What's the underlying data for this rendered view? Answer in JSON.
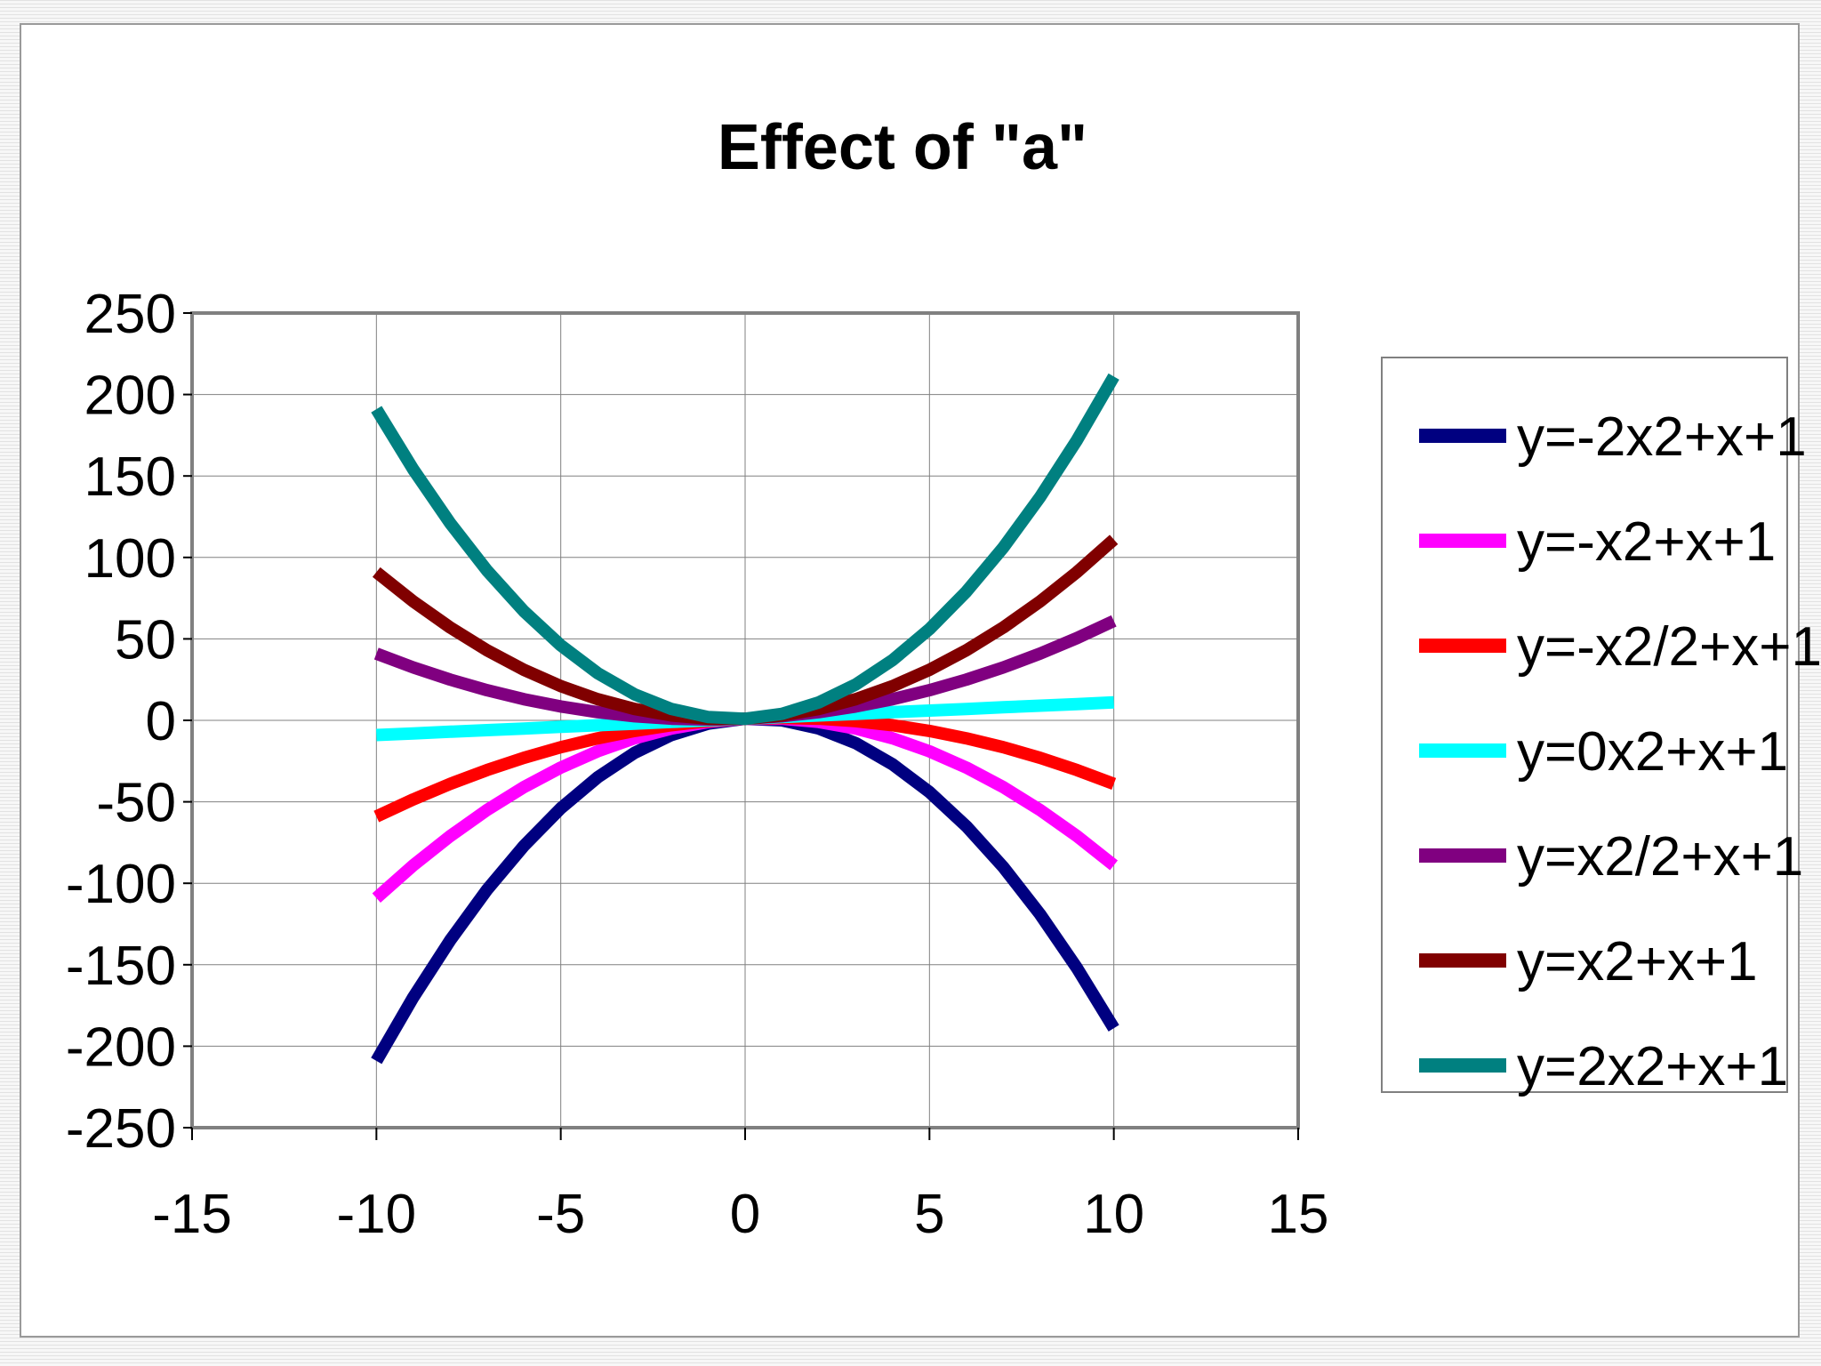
{
  "chart_data": {
    "type": "line",
    "title": "Effect of \"a\"",
    "xlabel": "",
    "ylabel": "",
    "xlim": [
      -15,
      15
    ],
    "ylim": [
      -250,
      250
    ],
    "x_ticks": [
      "-15",
      "-10",
      "-5",
      "0",
      "5",
      "10",
      "15"
    ],
    "y_ticks": [
      "250",
      "200",
      "150",
      "100",
      "50",
      "0",
      "-50",
      "-100",
      "-150",
      "-200",
      "-250"
    ],
    "x_tick_values": [
      -15,
      -10,
      -5,
      0,
      5,
      10,
      15
    ],
    "y_tick_values": [
      250,
      200,
      150,
      100,
      50,
      0,
      -50,
      -100,
      -150,
      -200,
      -250
    ],
    "grid": true,
    "legend_position": "right",
    "x": [
      -10,
      -9,
      -8,
      -7,
      -6,
      -5,
      -4,
      -3,
      -2,
      -1,
      0,
      1,
      2,
      3,
      4,
      5,
      6,
      7,
      8,
      9,
      10
    ],
    "series": [
      {
        "name": "y=-2x2+x+1",
        "color": "#000080",
        "values": [
          -209,
          -170,
          -135,
          -104,
          -77,
          -54,
          -35,
          -20,
          -9,
          -2,
          1,
          0,
          -5,
          -14,
          -27,
          -44,
          -65,
          -90,
          -119,
          -152,
          -189
        ]
      },
      {
        "name": "y=-x2+x+1",
        "color": "#ff00ff",
        "values": [
          -109,
          -89,
          -71,
          -55,
          -41,
          -29,
          -19,
          -11,
          -5,
          -1,
          1,
          1,
          -1,
          -5,
          -11,
          -19,
          -29,
          -41,
          -55,
          -71,
          -89
        ]
      },
      {
        "name": "y=-x2/2+x+1",
        "color": "#ff0000",
        "values": [
          -59,
          -48.5,
          -39,
          -30.5,
          -23,
          -16.5,
          -11,
          -6.5,
          -3,
          -0.5,
          1,
          1.5,
          1,
          -0.5,
          -3,
          -6.5,
          -11,
          -16.5,
          -23,
          -30.5,
          -39
        ]
      },
      {
        "name": "y=0x2+x+1",
        "color": "#00ffff",
        "values": [
          -9,
          -8,
          -7,
          -6,
          -5,
          -4,
          -3,
          -2,
          -1,
          0,
          1,
          2,
          3,
          4,
          5,
          6,
          7,
          8,
          9,
          10,
          11
        ]
      },
      {
        "name": "y=x2/2+x+1",
        "color": "#800080",
        "values": [
          41,
          32.5,
          25,
          18.5,
          13,
          8.5,
          5,
          2.5,
          1,
          0.5,
          1,
          2.5,
          5,
          8.5,
          13,
          18.5,
          25,
          32.5,
          41,
          50.5,
          61
        ]
      },
      {
        "name": "y=x2+x+1",
        "color": "#800000",
        "values": [
          91,
          73,
          57,
          43,
          31,
          21,
          13,
          7,
          3,
          1,
          1,
          3,
          7,
          13,
          21,
          31,
          43,
          57,
          73,
          91,
          111
        ]
      },
      {
        "name": "y=2x2+x+1",
        "color": "#008080",
        "values": [
          191,
          154,
          121,
          92,
          67,
          46,
          29,
          16,
          7,
          2,
          1,
          4,
          11,
          22,
          37,
          56,
          79,
          106,
          137,
          172,
          211
        ]
      }
    ]
  }
}
